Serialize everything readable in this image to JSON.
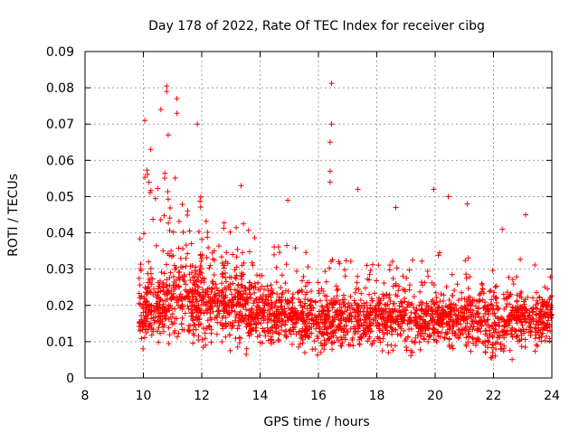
{
  "chart_data": {
    "type": "scatter",
    "title": "Day 178 of 2022, Rate Of TEC Index for receiver cibg",
    "xlabel": "GPS time / hours",
    "ylabel": "ROTI / TECUs",
    "xlim": [
      8,
      24
    ],
    "ylim": [
      0,
      0.09
    ],
    "xticks": [
      8,
      10,
      12,
      14,
      16,
      18,
      20,
      22,
      24
    ],
    "xtick_labels": [
      "8",
      "10",
      "12",
      "14",
      "16",
      "18",
      "20",
      "22",
      "24"
    ],
    "yticks": [
      0,
      0.01,
      0.02,
      0.03,
      0.04,
      0.05,
      0.06,
      0.07,
      0.08,
      0.09
    ],
    "ytick_labels": [
      "0",
      "0.01",
      "0.02",
      "0.03",
      "0.04",
      "0.05",
      "0.06",
      "0.07",
      "0.08",
      "0.09"
    ],
    "grid": true,
    "marker": "+",
    "color": "#ff0000",
    "series": [
      {
        "name": "ROTI",
        "x_range": [
          9.85,
          24.0
        ],
        "notable_points": [
          {
            "x": 10.05,
            "y": 0.071
          },
          {
            "x": 10.25,
            "y": 0.063
          },
          {
            "x": 10.6,
            "y": 0.074
          },
          {
            "x": 10.8,
            "y": 0.0805
          },
          {
            "x": 10.8,
            "y": 0.079
          },
          {
            "x": 10.85,
            "y": 0.067
          },
          {
            "x": 11.15,
            "y": 0.077
          },
          {
            "x": 11.15,
            "y": 0.073
          },
          {
            "x": 11.85,
            "y": 0.07
          },
          {
            "x": 13.35,
            "y": 0.053
          },
          {
            "x": 14.95,
            "y": 0.049
          },
          {
            "x": 16.45,
            "y": 0.0812
          },
          {
            "x": 16.45,
            "y": 0.07
          },
          {
            "x": 16.4,
            "y": 0.065
          },
          {
            "x": 16.4,
            "y": 0.057
          },
          {
            "x": 16.4,
            "y": 0.054
          },
          {
            "x": 17.35,
            "y": 0.052
          },
          {
            "x": 18.65,
            "y": 0.047
          },
          {
            "x": 19.95,
            "y": 0.052
          },
          {
            "x": 20.45,
            "y": 0.05
          },
          {
            "x": 21.1,
            "y": 0.048
          },
          {
            "x": 23.1,
            "y": 0.045
          },
          {
            "x": 22.3,
            "y": 0.041
          }
        ],
        "envelope": [
          {
            "x": 10.0,
            "low": 0.008,
            "typical": 0.018,
            "high": 0.058
          },
          {
            "x": 11.0,
            "low": 0.007,
            "typical": 0.022,
            "high": 0.056
          },
          {
            "x": 12.0,
            "low": 0.007,
            "typical": 0.021,
            "high": 0.05
          },
          {
            "x": 13.0,
            "low": 0.006,
            "typical": 0.02,
            "high": 0.045
          },
          {
            "x": 14.0,
            "low": 0.006,
            "typical": 0.018,
            "high": 0.04
          },
          {
            "x": 15.0,
            "low": 0.006,
            "typical": 0.017,
            "high": 0.04
          },
          {
            "x": 16.0,
            "low": 0.005,
            "typical": 0.016,
            "high": 0.037
          },
          {
            "x": 17.0,
            "low": 0.006,
            "typical": 0.016,
            "high": 0.035
          },
          {
            "x": 18.0,
            "low": 0.006,
            "typical": 0.016,
            "high": 0.033
          },
          {
            "x": 19.0,
            "low": 0.006,
            "typical": 0.016,
            "high": 0.033
          },
          {
            "x": 20.0,
            "low": 0.007,
            "typical": 0.016,
            "high": 0.037
          },
          {
            "x": 21.0,
            "low": 0.007,
            "typical": 0.016,
            "high": 0.036
          },
          {
            "x": 21.5,
            "low": 0.003,
            "typical": 0.015,
            "high": 0.029
          },
          {
            "x": 22.0,
            "low": 0.003,
            "typical": 0.015,
            "high": 0.03
          },
          {
            "x": 23.0,
            "low": 0.006,
            "typical": 0.016,
            "high": 0.034
          },
          {
            "x": 24.0,
            "low": 0.007,
            "typical": 0.017,
            "high": 0.03
          }
        ]
      }
    ]
  }
}
